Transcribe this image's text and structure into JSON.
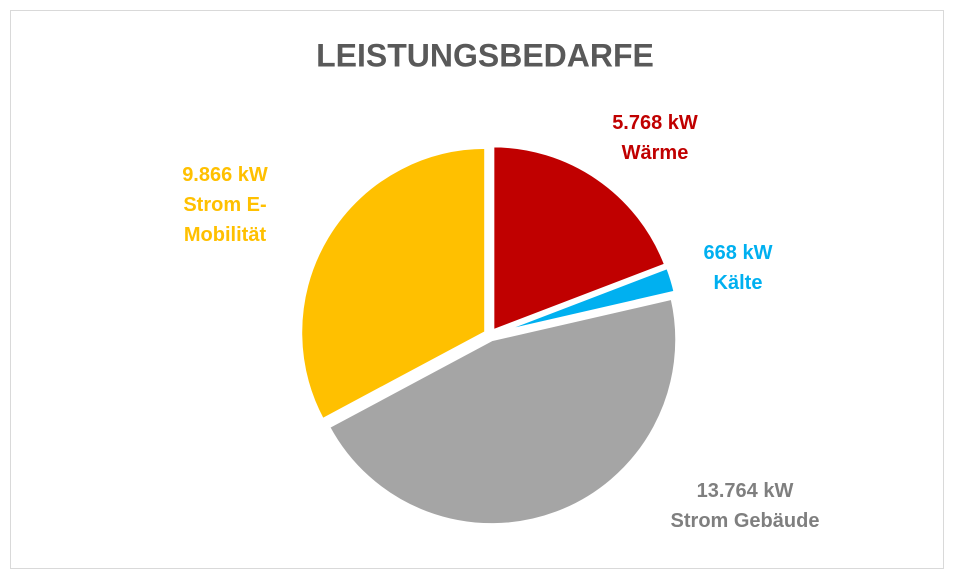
{
  "chart_data": {
    "type": "pie",
    "title": "LEISTUNGSBEDARFE",
    "categories": [
      "Wärme",
      "Kälte",
      "Strom Gebäude",
      "Strom E-Mobilität"
    ],
    "values": [
      5768,
      668,
      13764,
      9866
    ],
    "value_labels": [
      "5.768 kW",
      "668 kW",
      "13.764 kW",
      "9.866 kW"
    ],
    "colors": [
      "#c00000",
      "#00b0f0",
      "#a5a5a5",
      "#ffc000"
    ]
  }
}
